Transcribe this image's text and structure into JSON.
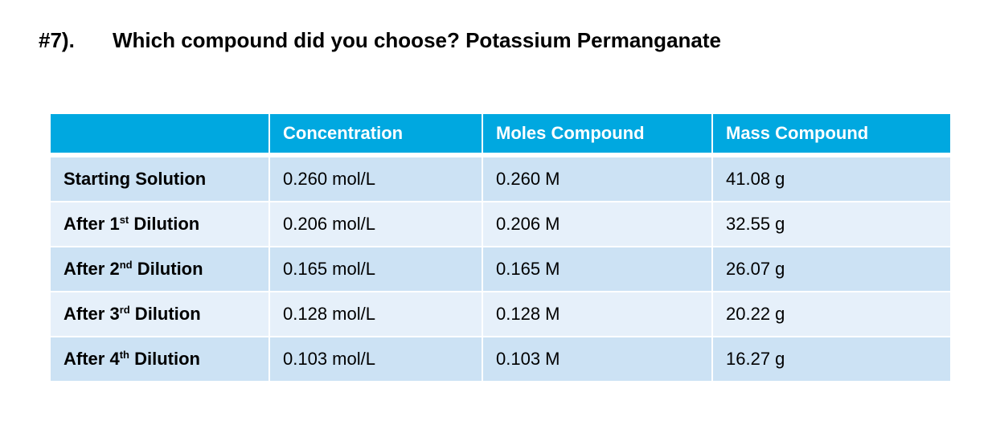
{
  "question": {
    "number": "#7).",
    "text": "Which compound did you choose? Potassium Permanganate"
  },
  "table": {
    "headers": [
      "",
      "Concentration",
      "Moles Compound",
      "Mass Compound"
    ],
    "rows": [
      {
        "label": "Starting Solution",
        "label_base": "",
        "label_sup": "",
        "label_tail": "",
        "concentration": "0.260 mol/L",
        "moles": "0.260 M",
        "mass": "41.08 g"
      },
      {
        "label": "After 1st Dilution",
        "label_base": "After 1",
        "label_sup": "st",
        "label_tail": " Dilution",
        "concentration": "0.206 mol/L",
        "moles": "0.206 M",
        "mass": "32.55 g"
      },
      {
        "label": "After 2nd Dilution",
        "label_base": "After 2",
        "label_sup": "nd",
        "label_tail": " Dilution",
        "concentration": "0.165 mol/L",
        "moles": "0.165 M",
        "mass": "26.07 g"
      },
      {
        "label": "After 3rd Dilution",
        "label_base": "After 3",
        "label_sup": "rd",
        "label_tail": " Dilution",
        "concentration": "0.128 mol/L",
        "moles": "0.128 M",
        "mass": "20.22 g"
      },
      {
        "label": "After 4th Dilution",
        "label_base": "After 4",
        "label_sup": "th",
        "label_tail": " Dilution",
        "concentration": "0.103 mol/L",
        "moles": "0.103 M",
        "mass": "16.27 g"
      }
    ]
  },
  "colors": {
    "header_bg": "#00a8e0",
    "row_odd_bg": "#cce2f4",
    "row_even_bg": "#e6f0fa"
  }
}
